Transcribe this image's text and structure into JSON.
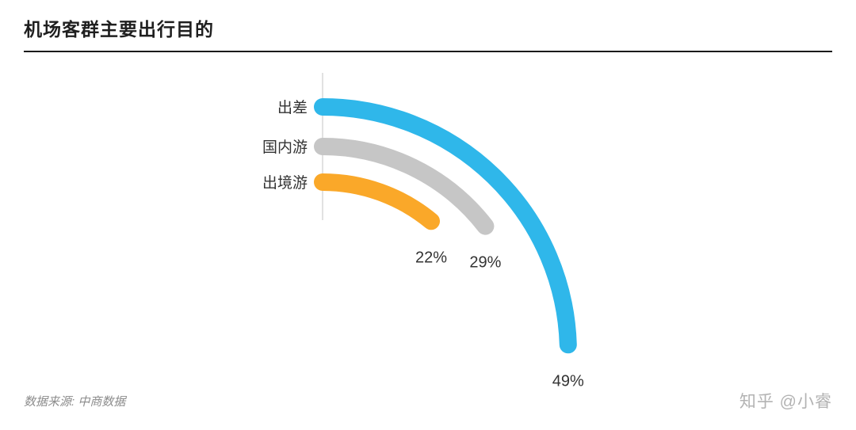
{
  "header": {
    "title": "机场客群主要出行目的"
  },
  "chart_data": {
    "type": "radial-bar",
    "title": "机场客群主要出行目的",
    "categories": [
      "出差",
      "国内游",
      "出境游"
    ],
    "values": [
      49,
      29,
      22
    ],
    "value_labels": [
      "49%",
      "29%",
      "22%"
    ],
    "unit": "%",
    "colors": [
      "#2fb7ea",
      "#c6c6c6",
      "#faa829"
    ],
    "scale_note": "semicircle-sweep equals 100%",
    "axis": "vertical baseline at left of arcs",
    "legend_position": "none",
    "grid": false
  },
  "footer": {
    "source": "数据来源: 中商数据",
    "watermark": "知乎 @小睿"
  }
}
